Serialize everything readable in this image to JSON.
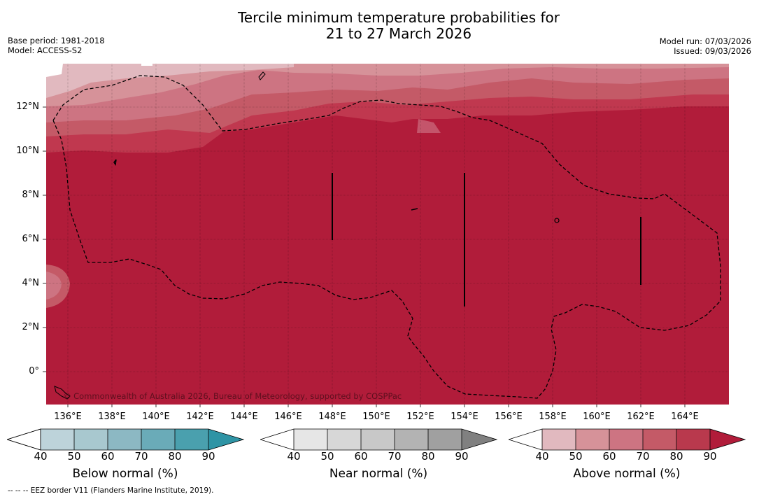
{
  "header": {
    "title_line1": "Tercile minimum temperature probabilities for",
    "title_line2": "21 to 27 March 2026",
    "base_period": "Base period: 1981-2018",
    "model": "Model: ACCESS-S2",
    "model_run": "Model run: 07/03/2026",
    "issued": "Issued: 09/03/2026"
  },
  "map": {
    "x_ticks": [
      "136°E",
      "138°E",
      "140°E",
      "142°E",
      "144°E",
      "146°E",
      "148°E",
      "150°E",
      "152°E",
      "154°E",
      "156°E",
      "158°E",
      "160°E",
      "162°E",
      "164°E"
    ],
    "y_ticks": [
      "12°N",
      "10°N",
      "8°N",
      "6°N",
      "4°N",
      "2°N",
      "0°"
    ],
    "copyright": "© Commonwealth of Australia 2026, Bureau of Meteorology, supported by COSPPac",
    "ocean_color": "#b31e3a"
  },
  "legend": {
    "ticks": [
      "40",
      "50",
      "60",
      "70",
      "80",
      "90"
    ],
    "below": {
      "label": "Below normal (%)",
      "colors": [
        "#ffffff",
        "#bdd3da",
        "#a8c8cf",
        "#8cb8c3",
        "#6aabb8",
        "#4aa0ae",
        "#2e94a5"
      ]
    },
    "near": {
      "label": "Near normal (%)",
      "colors": [
        "#ffffff",
        "#e6e6e6",
        "#d7d7d7",
        "#c8c8c8",
        "#b3b3b3",
        "#a0a0a0",
        "#808080"
      ]
    },
    "above": {
      "label": "Above normal (%)",
      "colors": [
        "#ffffff",
        "#e1b9bf",
        "#d69299",
        "#cd7482",
        "#c45a67",
        "#b9394d",
        "#b11c3a"
      ]
    }
  },
  "footer": {
    "note": "--  --  -- EEZ border V11 (Flanders Marine Institute, 2019)."
  }
}
